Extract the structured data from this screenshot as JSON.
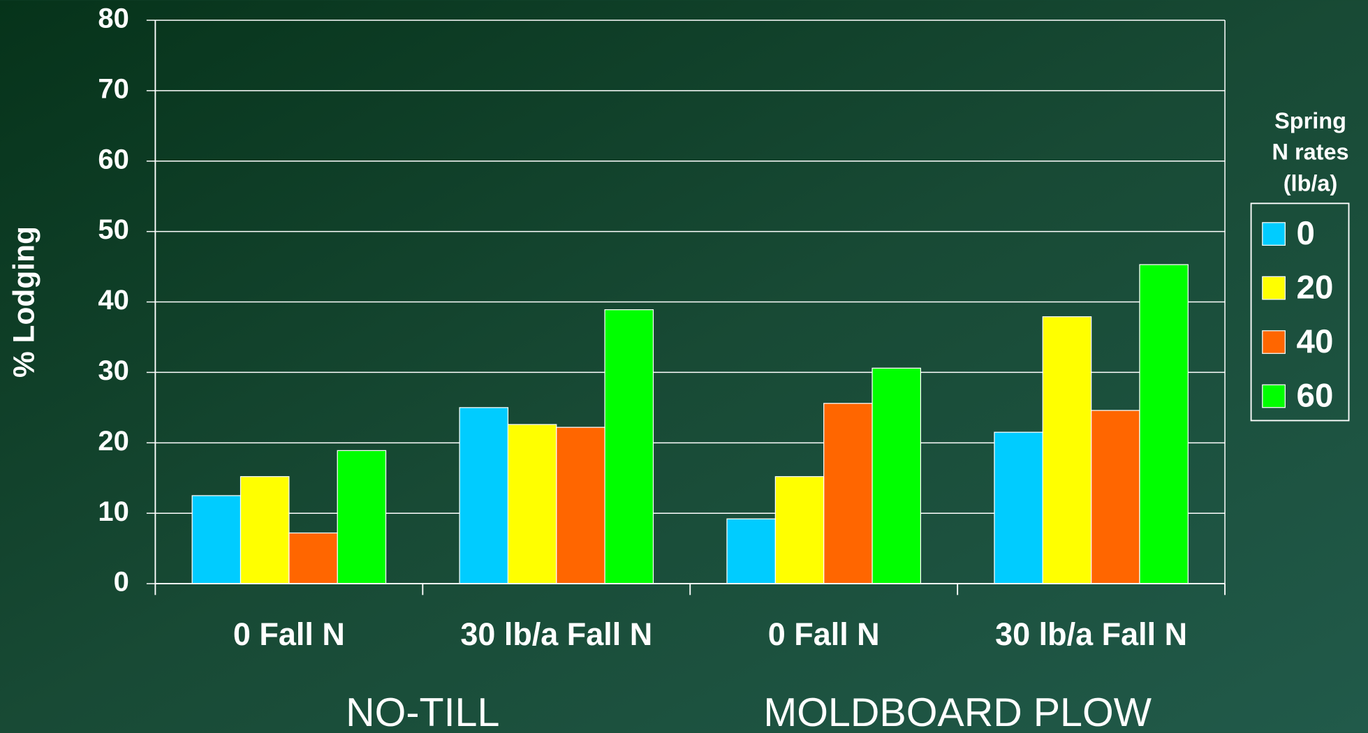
{
  "chart_data": {
    "type": "bar",
    "y_label": "% Lodging",
    "categories": [
      "0 Fall N",
      "30 lb/a Fall N",
      "0 Fall N",
      "30 lb/a Fall N"
    ],
    "group_labels": [
      "NO-TILL",
      "MOLDBOARD PLOW"
    ],
    "legend_title": [
      "Spring",
      "N rates",
      "(lb/a)"
    ],
    "series": [
      {
        "name": "0",
        "color": "#00ccff",
        "values": [
          12.5,
          25.0,
          9.2,
          21.5
        ]
      },
      {
        "name": "20",
        "color": "#ffff00",
        "values": [
          15.2,
          22.6,
          15.2,
          37.9
        ]
      },
      {
        "name": "40",
        "color": "#ff6600",
        "values": [
          7.2,
          22.2,
          25.6,
          24.6
        ]
      },
      {
        "name": "60",
        "color": "#00ff00",
        "values": [
          18.9,
          38.9,
          30.6,
          45.3
        ]
      }
    ],
    "ylim": [
      0,
      80
    ],
    "yticks": [
      0,
      10,
      20,
      30,
      40,
      50,
      60,
      70,
      80
    ],
    "grid": true,
    "legend": "right"
  }
}
